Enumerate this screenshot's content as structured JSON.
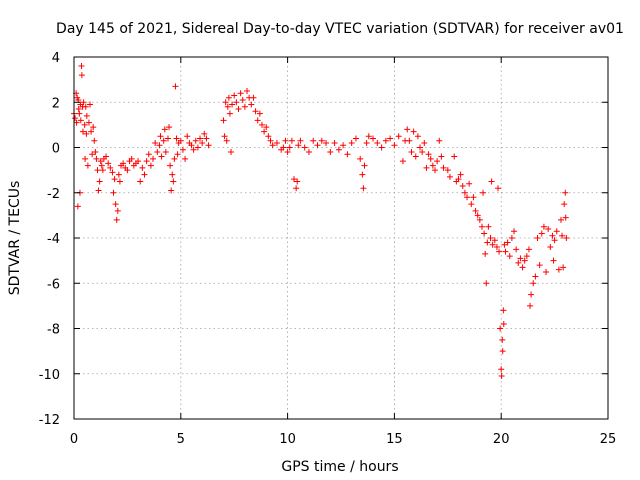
{
  "chart_data": {
    "type": "scatter",
    "title": "Day 145 of 2021, Sidereal Day-to-day VTEC variation (SDTVAR) for receiver av01",
    "xlabel": "GPS time / hours",
    "ylabel": "SDTVAR / TECUs",
    "xlim": [
      0,
      25
    ],
    "ylim": [
      -12,
      4
    ],
    "xticks": [
      0,
      5,
      10,
      15,
      20,
      25
    ],
    "yticks": [
      4,
      2,
      0,
      -2,
      -4,
      -6,
      -8,
      -10,
      -12
    ],
    "grid": true,
    "marker": "+",
    "color": "#ff0000",
    "series": [
      {
        "name": "SDTVAR",
        "points": [
          [
            0.0,
            1.5
          ],
          [
            0.05,
            1.3
          ],
          [
            0.1,
            2.4
          ],
          [
            0.12,
            1.1
          ],
          [
            0.15,
            2.2
          ],
          [
            0.18,
            -2.6
          ],
          [
            0.2,
            2.1
          ],
          [
            0.22,
            1.7
          ],
          [
            0.25,
            1.5
          ],
          [
            0.28,
            -2.0
          ],
          [
            0.3,
            1.9
          ],
          [
            0.32,
            1.2
          ],
          [
            0.35,
            3.6
          ],
          [
            0.37,
            3.2
          ],
          [
            0.4,
            1.8
          ],
          [
            0.42,
            0.7
          ],
          [
            0.45,
            2.0
          ],
          [
            0.5,
            1.0
          ],
          [
            0.52,
            -0.5
          ],
          [
            0.55,
            1.8
          ],
          [
            0.58,
            0.6
          ],
          [
            0.6,
            1.4
          ],
          [
            0.65,
            -0.8
          ],
          [
            0.7,
            1.1
          ],
          [
            0.75,
            1.9
          ],
          [
            0.8,
            0.7
          ],
          [
            0.85,
            -0.3
          ],
          [
            0.9,
            0.9
          ],
          [
            0.95,
            0.3
          ],
          [
            1.0,
            -0.2
          ],
          [
            1.05,
            -0.5
          ],
          [
            1.1,
            -1.0
          ],
          [
            1.15,
            -1.9
          ],
          [
            1.2,
            -1.5
          ],
          [
            1.25,
            -0.6
          ],
          [
            1.3,
            -0.8
          ],
          [
            1.35,
            -1.0
          ],
          [
            1.4,
            -0.5
          ],
          [
            1.5,
            -0.4
          ],
          [
            1.6,
            -0.7
          ],
          [
            1.7,
            -0.9
          ],
          [
            1.8,
            -1.1
          ],
          [
            1.85,
            -2.0
          ],
          [
            1.9,
            -1.4
          ],
          [
            1.95,
            -2.5
          ],
          [
            2.0,
            -3.2
          ],
          [
            2.05,
            -2.8
          ],
          [
            2.1,
            -1.2
          ],
          [
            2.15,
            -1.5
          ],
          [
            2.2,
            -0.8
          ],
          [
            2.3,
            -0.7
          ],
          [
            2.4,
            -0.9
          ],
          [
            2.5,
            -1.0
          ],
          [
            2.6,
            -0.6
          ],
          [
            2.7,
            -0.5
          ],
          [
            2.8,
            -0.8
          ],
          [
            2.9,
            -0.7
          ],
          [
            3.0,
            -0.6
          ],
          [
            3.1,
            -1.5
          ],
          [
            3.2,
            -0.9
          ],
          [
            3.3,
            -1.2
          ],
          [
            3.4,
            -0.6
          ],
          [
            3.5,
            -0.3
          ],
          [
            3.6,
            -0.8
          ],
          [
            3.7,
            -0.5
          ],
          [
            3.8,
            0.2
          ],
          [
            3.9,
            -0.2
          ],
          [
            4.0,
            0.1
          ],
          [
            4.05,
            0.5
          ],
          [
            4.1,
            -0.4
          ],
          [
            4.2,
            0.3
          ],
          [
            4.25,
            0.8
          ],
          [
            4.3,
            -0.2
          ],
          [
            4.4,
            0.4
          ],
          [
            4.45,
            0.9
          ],
          [
            4.5,
            -0.8
          ],
          [
            4.55,
            -1.9
          ],
          [
            4.6,
            -1.2
          ],
          [
            4.65,
            -1.5
          ],
          [
            4.7,
            -0.5
          ],
          [
            4.75,
            2.7
          ],
          [
            4.8,
            0.4
          ],
          [
            4.85,
            -0.3
          ],
          [
            4.9,
            0.2
          ],
          [
            5.0,
            0.3
          ],
          [
            5.1,
            -0.1
          ],
          [
            5.2,
            -0.5
          ],
          [
            5.3,
            0.5
          ],
          [
            5.4,
            0.2
          ],
          [
            5.5,
            0.1
          ],
          [
            5.6,
            -0.1
          ],
          [
            5.7,
            0.3
          ],
          [
            5.8,
            0.0
          ],
          [
            5.9,
            0.4
          ],
          [
            6.0,
            0.2
          ],
          [
            6.1,
            0.6
          ],
          [
            6.2,
            0.4
          ],
          [
            6.3,
            0.1
          ],
          [
            7.0,
            1.2
          ],
          [
            7.05,
            0.5
          ],
          [
            7.1,
            2.0
          ],
          [
            7.15,
            0.3
          ],
          [
            7.2,
            1.8
          ],
          [
            7.25,
            2.2
          ],
          [
            7.3,
            1.5
          ],
          [
            7.35,
            -0.2
          ],
          [
            7.4,
            1.9
          ],
          [
            7.5,
            2.3
          ],
          [
            7.6,
            2.0
          ],
          [
            7.7,
            1.7
          ],
          [
            7.8,
            2.4
          ],
          [
            7.9,
            2.1
          ],
          [
            8.0,
            1.8
          ],
          [
            8.1,
            2.5
          ],
          [
            8.2,
            2.2
          ],
          [
            8.3,
            1.9
          ],
          [
            8.4,
            2.2
          ],
          [
            8.5,
            1.6
          ],
          [
            8.6,
            1.2
          ],
          [
            8.7,
            1.5
          ],
          [
            8.8,
            1.0
          ],
          [
            8.9,
            0.7
          ],
          [
            9.0,
            0.9
          ],
          [
            9.1,
            0.5
          ],
          [
            9.2,
            0.3
          ],
          [
            9.3,
            0.1
          ],
          [
            9.5,
            0.2
          ],
          [
            9.7,
            -0.1
          ],
          [
            9.8,
            0.0
          ],
          [
            9.9,
            0.3
          ],
          [
            10.0,
            -0.2
          ],
          [
            10.1,
            0.0
          ],
          [
            10.2,
            0.3
          ],
          [
            10.3,
            -1.4
          ],
          [
            10.4,
            -1.8
          ],
          [
            10.45,
            -1.5
          ],
          [
            10.5,
            0.1
          ],
          [
            10.6,
            0.3
          ],
          [
            10.8,
            0.0
          ],
          [
            11.0,
            -0.2
          ],
          [
            11.2,
            0.3
          ],
          [
            11.4,
            0.1
          ],
          [
            11.6,
            0.3
          ],
          [
            11.8,
            0.2
          ],
          [
            12.0,
            -0.2
          ],
          [
            12.2,
            0.2
          ],
          [
            12.4,
            -0.1
          ],
          [
            12.6,
            0.1
          ],
          [
            12.8,
            -0.3
          ],
          [
            13.0,
            0.2
          ],
          [
            13.2,
            0.4
          ],
          [
            13.4,
            -0.5
          ],
          [
            13.5,
            -1.2
          ],
          [
            13.55,
            -1.8
          ],
          [
            13.6,
            -0.8
          ],
          [
            13.7,
            0.2
          ],
          [
            13.8,
            0.5
          ],
          [
            14.0,
            0.4
          ],
          [
            14.2,
            0.2
          ],
          [
            14.4,
            0.0
          ],
          [
            14.6,
            0.3
          ],
          [
            14.8,
            0.4
          ],
          [
            15.0,
            0.1
          ],
          [
            15.2,
            0.5
          ],
          [
            15.4,
            -0.6
          ],
          [
            15.5,
            0.3
          ],
          [
            15.6,
            0.8
          ],
          [
            15.7,
            0.3
          ],
          [
            15.8,
            -0.2
          ],
          [
            15.9,
            0.7
          ],
          [
            16.0,
            -0.4
          ],
          [
            16.1,
            0.5
          ],
          [
            16.2,
            0.0
          ],
          [
            16.3,
            -0.2
          ],
          [
            16.4,
            0.2
          ],
          [
            16.5,
            -0.9
          ],
          [
            16.6,
            -0.3
          ],
          [
            16.7,
            -0.5
          ],
          [
            16.8,
            -0.8
          ],
          [
            16.9,
            -1.0
          ],
          [
            17.0,
            -0.6
          ],
          [
            17.1,
            0.3
          ],
          [
            17.2,
            -0.4
          ],
          [
            17.3,
            -0.9
          ],
          [
            17.5,
            -1.0
          ],
          [
            17.6,
            -1.3
          ],
          [
            17.8,
            -0.4
          ],
          [
            17.9,
            -1.5
          ],
          [
            18.0,
            -1.4
          ],
          [
            18.1,
            -1.2
          ],
          [
            18.2,
            -1.7
          ],
          [
            18.3,
            -2.0
          ],
          [
            18.4,
            -2.2
          ],
          [
            18.5,
            -1.6
          ],
          [
            18.6,
            -2.5
          ],
          [
            18.7,
            -2.2
          ],
          [
            18.8,
            -2.8
          ],
          [
            18.9,
            -3.0
          ],
          [
            19.0,
            -3.2
          ],
          [
            19.1,
            -3.5
          ],
          [
            19.15,
            -2.0
          ],
          [
            19.2,
            -3.8
          ],
          [
            19.25,
            -4.7
          ],
          [
            19.3,
            -6.0
          ],
          [
            19.35,
            -4.2
          ],
          [
            19.4,
            -3.5
          ],
          [
            19.5,
            -4.0
          ],
          [
            19.55,
            -1.5
          ],
          [
            19.6,
            -4.3
          ],
          [
            19.7,
            -4.1
          ],
          [
            19.8,
            -4.4
          ],
          [
            19.85,
            -1.8
          ],
          [
            19.9,
            -4.6
          ],
          [
            19.95,
            -8.0
          ],
          [
            20.0,
            -9.8
          ],
          [
            20.02,
            -10.1
          ],
          [
            20.05,
            -8.5
          ],
          [
            20.07,
            -9.0
          ],
          [
            20.1,
            -7.2
          ],
          [
            20.12,
            -7.8
          ],
          [
            20.15,
            -4.3
          ],
          [
            20.2,
            -4.6
          ],
          [
            20.3,
            -4.2
          ],
          [
            20.4,
            -4.8
          ],
          [
            20.5,
            -4.0
          ],
          [
            20.6,
            -3.7
          ],
          [
            20.7,
            -4.5
          ],
          [
            20.8,
            -5.1
          ],
          [
            20.9,
            -4.9
          ],
          [
            21.0,
            -5.3
          ],
          [
            21.1,
            -5.0
          ],
          [
            21.2,
            -4.8
          ],
          [
            21.3,
            -4.5
          ],
          [
            21.35,
            -7.0
          ],
          [
            21.4,
            -6.5
          ],
          [
            21.5,
            -6.0
          ],
          [
            21.6,
            -5.7
          ],
          [
            21.7,
            -4.0
          ],
          [
            21.8,
            -5.2
          ],
          [
            21.9,
            -3.8
          ],
          [
            22.0,
            -3.5
          ],
          [
            22.1,
            -5.5
          ],
          [
            22.2,
            -3.6
          ],
          [
            22.3,
            -4.4
          ],
          [
            22.4,
            -3.9
          ],
          [
            22.45,
            -5.0
          ],
          [
            22.5,
            -4.1
          ],
          [
            22.6,
            -3.7
          ],
          [
            22.7,
            -5.4
          ],
          [
            22.8,
            -3.2
          ],
          [
            22.85,
            -3.9
          ],
          [
            22.9,
            -5.3
          ],
          [
            22.95,
            -2.5
          ],
          [
            23.0,
            -2.0
          ],
          [
            23.02,
            -3.1
          ],
          [
            23.05,
            -4.0
          ]
        ]
      }
    ]
  }
}
